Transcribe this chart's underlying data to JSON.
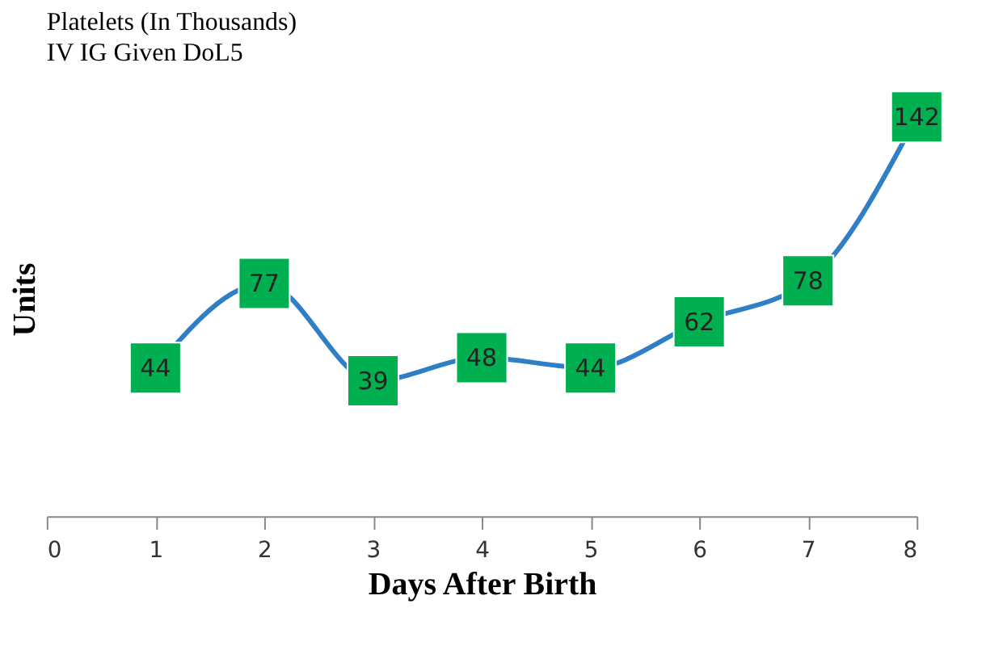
{
  "chart_data": {
    "type": "line",
    "title": "Platelets (In Thousands)",
    "subtitle": "IV IG  Given DoL5",
    "xlabel": "Days After Birth",
    "ylabel": "Units",
    "x": [
      1,
      2,
      3,
      4,
      5,
      6,
      7,
      8
    ],
    "series": [
      {
        "color": "#2e7fc6",
        "values": [
          44,
          77,
          39,
          48,
          44,
          62,
          78,
          142
        ]
      }
    ],
    "xlim": [
      0,
      8
    ],
    "xticks": [
      0,
      1,
      2,
      3,
      4,
      5,
      6,
      7,
      8
    ],
    "tick_labels": "x",
    "data_labels": true,
    "marker": "square",
    "grid": false,
    "line_style": "solid"
  }
}
